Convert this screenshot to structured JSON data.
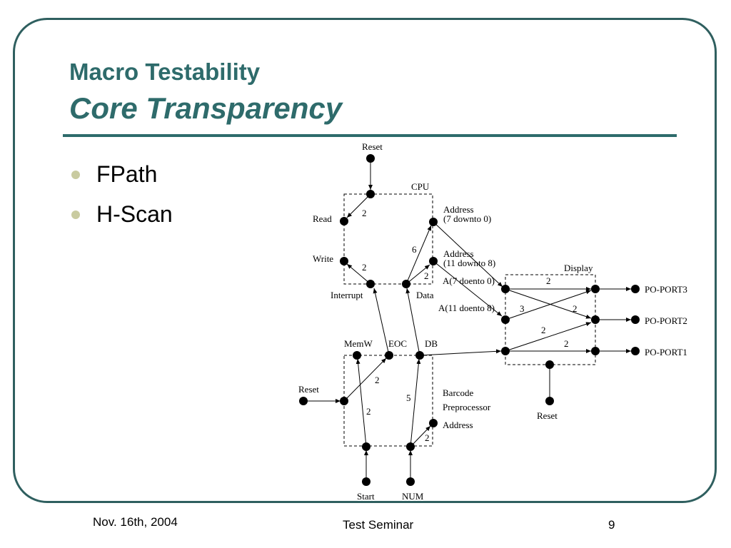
{
  "slide": {
    "title": "Macro Testability",
    "subtitle": "Core Transparency",
    "bullets": [
      "FPath",
      "H-Scan"
    ]
  },
  "footer": {
    "date": "Nov. 16th, 2004",
    "event": "Test Seminar",
    "page": "9"
  },
  "diagram": {
    "blocks": {
      "cpu": "CPU",
      "display": "Display",
      "barcode_line1": "Barcode",
      "barcode_line2": "Preprocessor"
    },
    "labels": {
      "reset_top": "Reset",
      "read": "Read",
      "write": "Write",
      "interrupt": "Interrupt",
      "data": "Data",
      "address_lo_1": "Address",
      "address_lo_2": "(7 downto 0)",
      "address_hi_1": "Address",
      "address_hi_2": "(11 downto 8)",
      "a_lo": "A(7 doento 0)",
      "a_hi": "A(11 doento 8)",
      "memw": "MemW",
      "eoc": "EOC",
      "db": "DB",
      "reset_left": "Reset",
      "address_bc": "Address",
      "start": "Start",
      "num": "NUM",
      "reset_display": "Reset",
      "po_port3": "PO-PORT3",
      "po_port2": "PO-PORT2",
      "po_port1": "PO-PORT1"
    },
    "weights": {
      "w_read": "2",
      "w_write": "2",
      "w_data_addr": "6",
      "w_data_addrhi": "2",
      "w_d_top": "2",
      "w_d_cross": "3",
      "w_d_mid": "2",
      "w_d_db": "2",
      "w_d_bottom": "2",
      "w_bc_eoc": "2",
      "w_bc_start": "2",
      "w_bc_db": "5",
      "w_bc_addr": "2"
    }
  }
}
